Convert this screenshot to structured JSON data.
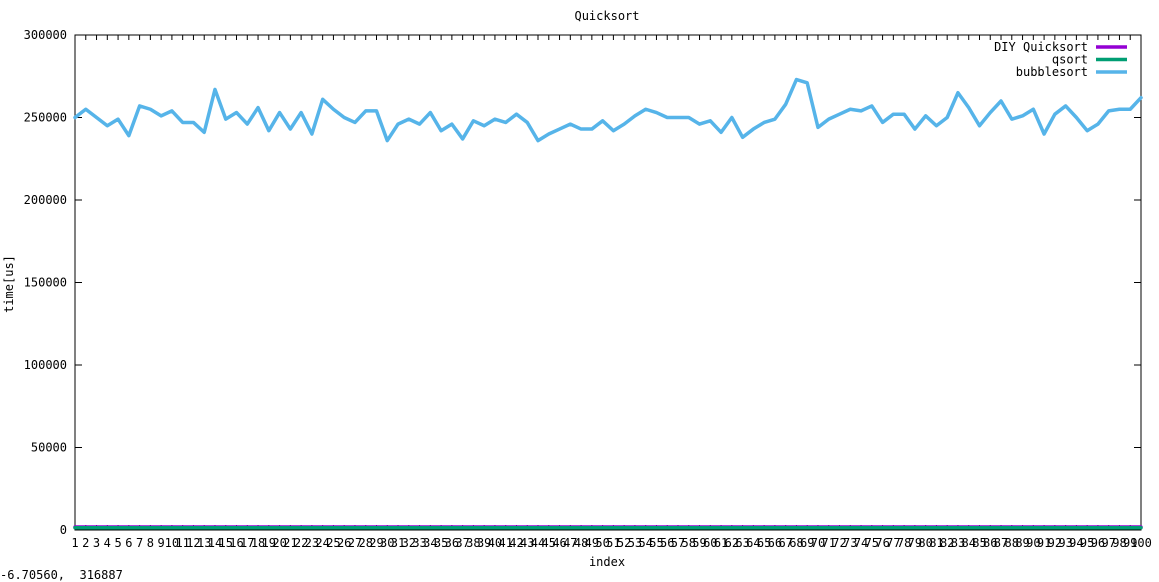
{
  "chart_data": {
    "type": "line",
    "title": "Quicksort",
    "xlabel": "index",
    "ylabel": "time[us]",
    "x": [
      1,
      2,
      3,
      4,
      5,
      6,
      7,
      8,
      9,
      10,
      11,
      12,
      13,
      14,
      15,
      16,
      17,
      18,
      19,
      20,
      21,
      22,
      23,
      24,
      25,
      26,
      27,
      28,
      29,
      30,
      31,
      32,
      33,
      34,
      35,
      36,
      37,
      38,
      39,
      40,
      41,
      42,
      43,
      44,
      45,
      46,
      47,
      48,
      49,
      50,
      51,
      52,
      53,
      54,
      55,
      56,
      57,
      58,
      59,
      60,
      61,
      62,
      63,
      64,
      65,
      66,
      67,
      68,
      69,
      70,
      71,
      72,
      73,
      74,
      75,
      76,
      77,
      78,
      79,
      80,
      81,
      82,
      83,
      84,
      85,
      86,
      87,
      88,
      89,
      90,
      91,
      92,
      93,
      94,
      95,
      96,
      97,
      98,
      99,
      100
    ],
    "xlim": [
      1,
      100
    ],
    "ylim": [
      0,
      300000
    ],
    "yticks": [
      0,
      50000,
      100000,
      150000,
      200000,
      250000,
      300000
    ],
    "grid": false,
    "legend_position": "top-right",
    "series": [
      {
        "name": "DIY Quicksort",
        "color": "#9400d3",
        "values": [
          1800,
          1800,
          1800,
          1800,
          1800,
          1800,
          1800,
          1800,
          1800,
          1800,
          1800,
          1800,
          1800,
          1800,
          1800,
          1800,
          1800,
          1800,
          1800,
          1800,
          1800,
          1800,
          1800,
          1800,
          1800,
          1800,
          1800,
          1800,
          1800,
          1800,
          1800,
          1800,
          1800,
          1800,
          1800,
          1800,
          1800,
          1800,
          1800,
          1800,
          1800,
          1800,
          1800,
          1800,
          1800,
          1800,
          1800,
          1800,
          1800,
          1800,
          1800,
          1800,
          1800,
          1800,
          1800,
          1800,
          1800,
          1800,
          1800,
          1800,
          1800,
          1800,
          1800,
          1800,
          1800,
          1800,
          1800,
          1800,
          1800,
          1800,
          1800,
          1800,
          1800,
          1800,
          1800,
          1800,
          1800,
          1800,
          1800,
          1800,
          1800,
          1800,
          1800,
          1800,
          1800,
          1800,
          1800,
          1800,
          1800,
          1800,
          1800,
          1800,
          1800,
          1800,
          1800,
          1800,
          1800,
          1800,
          1800,
          1800
        ]
      },
      {
        "name": "qsort",
        "color": "#009e73",
        "values": [
          1400,
          1400,
          1400,
          1400,
          1400,
          1400,
          1400,
          1400,
          1400,
          1400,
          1400,
          1400,
          1400,
          1400,
          1400,
          1400,
          1400,
          1400,
          1400,
          1400,
          1400,
          1400,
          1400,
          1400,
          1400,
          1400,
          1400,
          1400,
          1400,
          1400,
          1400,
          1400,
          1400,
          1400,
          1400,
          1400,
          1400,
          1400,
          1400,
          1400,
          1400,
          1400,
          1400,
          1400,
          1400,
          1400,
          1400,
          1400,
          1400,
          1400,
          1400,
          1400,
          1400,
          1400,
          1400,
          1400,
          1400,
          1400,
          1400,
          1400,
          1400,
          1400,
          1400,
          1400,
          1400,
          1400,
          1400,
          1400,
          1400,
          1400,
          1400,
          1400,
          1400,
          1400,
          1400,
          1400,
          1400,
          1400,
          1400,
          1400,
          1400,
          1400,
          1400,
          1400,
          1400,
          1400,
          1400,
          1400,
          1400,
          1400,
          1400,
          1400,
          1400,
          1400,
          1400,
          1400,
          1400,
          1400,
          1400,
          1400
        ]
      },
      {
        "name": "bubblesort",
        "color": "#56b4e9",
        "values": [
          250000,
          255000,
          250000,
          245000,
          249000,
          239000,
          257000,
          255000,
          251000,
          254000,
          247000,
          247000,
          241000,
          267000,
          249000,
          253000,
          246000,
          256000,
          242000,
          253000,
          243000,
          253000,
          240000,
          261000,
          255000,
          250000,
          247000,
          254000,
          254000,
          236000,
          246000,
          249000,
          246000,
          253000,
          242000,
          246000,
          237000,
          248000,
          245000,
          249000,
          247000,
          252000,
          247000,
          236000,
          240000,
          243000,
          246000,
          243000,
          243000,
          248000,
          242000,
          246000,
          251000,
          255000,
          253000,
          250000,
          250000,
          250000,
          246000,
          248000,
          241000,
          250000,
          238000,
          243000,
          247000,
          249000,
          258000,
          273000,
          271000,
          244000,
          249000,
          252000,
          255000,
          254000,
          257000,
          247000,
          252000,
          252000,
          243000,
          251000,
          245000,
          250000,
          265000,
          256000,
          245000,
          253000,
          260000,
          249000,
          251000,
          255000,
          240000,
          252000,
          257000,
          250000,
          242000,
          246000,
          254000,
          255000,
          255000,
          262000
        ]
      }
    ]
  },
  "coordinate_readout": "-6.70560,  316887"
}
